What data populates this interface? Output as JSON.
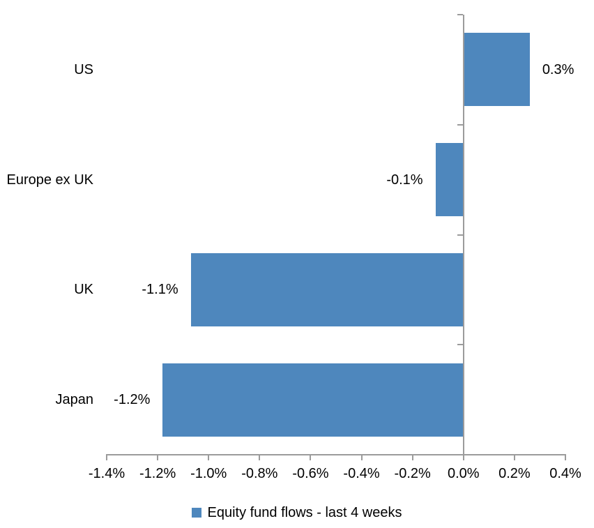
{
  "chart_data": {
    "type": "bar",
    "orientation": "horizontal",
    "title": "",
    "categories": [
      "US",
      "Europe ex UK",
      "UK",
      "Japan"
    ],
    "values": [
      0.3,
      -0.1,
      -1.1,
      -1.2
    ],
    "value_labels": [
      "0.3%",
      "-0.1%",
      "-1.1%",
      "-1.2%"
    ],
    "values_precise": [
      0.26,
      -0.11,
      -1.07,
      -1.18
    ],
    "series": [
      {
        "name": "Equity fund flows - last 4 weeks",
        "values": [
          0.3,
          -0.1,
          -1.1,
          -1.2
        ]
      }
    ],
    "xlim": [
      -1.4,
      0.4
    ],
    "x_ticks": [
      {
        "value": -1.4,
        "label": "-1.4%"
      },
      {
        "value": -1.2,
        "label": "-1.2%"
      },
      {
        "value": -1.0,
        "label": "-1.0%"
      },
      {
        "value": -0.8,
        "label": "-0.8%"
      },
      {
        "value": -0.6,
        "label": "-0.6%"
      },
      {
        "value": -0.4,
        "label": "-0.4%"
      },
      {
        "value": -0.2,
        "label": "-0.2%"
      },
      {
        "value": 0.0,
        "label": "0.0%"
      },
      {
        "value": 0.2,
        "label": "0.2%"
      },
      {
        "value": 0.4,
        "label": "0.4%"
      }
    ],
    "grid": false,
    "legend_position": "bottom",
    "colors": {
      "bar": "#4E87BD",
      "axis": "#9B9B9B",
      "text": "#000000",
      "background": "#FFFFFF"
    }
  },
  "legend": {
    "label": "Equity fund flows - last 4 weeks"
  }
}
